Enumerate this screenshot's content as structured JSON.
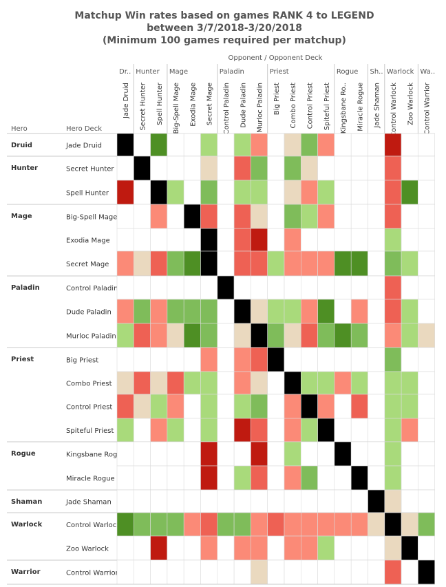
{
  "chart_data": {
    "type": "heatmap",
    "title_lines": [
      "Matchup Win rates based on games RANK 4 to LEGEND",
      "between 3/7/2018-3/20/2018",
      "(Minimum 100 games required per matchup)"
    ],
    "opponent_header": "Opponent  /  Opponent Deck",
    "row_header_hero": "Hero",
    "row_header_deck": "Hero Deck",
    "col_groups": [
      {
        "label": "Dr..",
        "span": 1
      },
      {
        "label": "Hunter",
        "span": 2
      },
      {
        "label": "Mage",
        "span": 3
      },
      {
        "label": "Paladin",
        "span": 3
      },
      {
        "label": "Priest",
        "span": 4
      },
      {
        "label": "Rogue",
        "span": 2
      },
      {
        "label": "Sh..",
        "span": 1
      },
      {
        "label": "Warlock",
        "span": 2
      },
      {
        "label": "Wa..",
        "span": 1
      }
    ],
    "columns": [
      "Jade Druid",
      "Secret Hunter",
      "Spell Hunter",
      "Big-Spell Mage",
      "Exodia Mage",
      "Secret Mage",
      "Control Paladin",
      "Dude Paladin",
      "Murloc Paladin",
      "Big Priest",
      "Combo Priest",
      "Control Priest",
      "Spiteful Priest",
      "Kingsbane Ro..",
      "Miracle Rogue",
      "Jade Shaman",
      "Control Warlock",
      "Zoo Warlock",
      "Control Warrior"
    ],
    "row_groups": [
      {
        "hero": "Druid",
        "rows": [
          {
            "deck": "Jade Druid",
            "cells": [
              "B",
              "",
              "G",
              "",
              "",
              "LG",
              "",
              "LG",
              "S",
              "",
              "T",
              "MG",
              "S",
              "",
              "",
              "",
              "DR",
              "",
              ""
            ]
          }
        ]
      },
      {
        "hero": "Hunter",
        "rows": [
          {
            "deck": "Secret Hunter",
            "cells": [
              "",
              "B",
              "",
              "",
              "",
              "T",
              "",
              "R",
              "MG",
              "",
              "MG",
              "T",
              "",
              "",
              "",
              "",
              "R",
              "",
              ""
            ]
          },
          {
            "deck": "Spell Hunter",
            "cells": [
              "DR",
              "",
              "B",
              "LG",
              "",
              "MG",
              "",
              "LG",
              "LG",
              "",
              "T",
              "S",
              "LG",
              "",
              "",
              "",
              "R",
              "G",
              ""
            ]
          }
        ]
      },
      {
        "hero": "Mage",
        "rows": [
          {
            "deck": "Big-Spell Mage",
            "cells": [
              "",
              "",
              "S",
              "",
              "B",
              "R",
              "",
              "R",
              "T",
              "",
              "MG",
              "LG",
              "S",
              "",
              "",
              "",
              "R",
              "",
              ""
            ]
          },
          {
            "deck": "Exodia Mage",
            "cells": [
              "",
              "",
              "",
              "",
              "",
              "B",
              "",
              "R",
              "DR",
              "",
              "S",
              "",
              "",
              "",
              "",
              "",
              "LG",
              "",
              ""
            ]
          },
          {
            "deck": "Secret Mage",
            "cells": [
              "S",
              "T",
              "R",
              "MG",
              "G",
              "B",
              "",
              "R",
              "R",
              "LG",
              "S",
              "S",
              "S",
              "G",
              "G",
              "",
              "MG",
              "LG",
              ""
            ]
          }
        ]
      },
      {
        "hero": "Paladin",
        "rows": [
          {
            "deck": "Control Paladin",
            "cells": [
              "",
              "",
              "",
              "",
              "",
              "",
              "B",
              "",
              "",
              "",
              "",
              "",
              "",
              "",
              "",
              "",
              "R",
              "",
              ""
            ]
          },
          {
            "deck": "Dude Paladin",
            "cells": [
              "S",
              "MG",
              "S",
              "MG",
              "MG",
              "MG",
              "",
              "B",
              "T",
              "LG",
              "LG",
              "S",
              "G",
              "",
              "S",
              "",
              "R",
              "LG",
              ""
            ]
          },
          {
            "deck": "Murloc Paladin",
            "cells": [
              "LG",
              "R",
              "S",
              "T",
              "G",
              "MG",
              "",
              "T",
              "B",
              "MG",
              "T",
              "R",
              "MG",
              "G",
              "MG",
              "",
              "S",
              "LG",
              "T"
            ]
          }
        ]
      },
      {
        "hero": "Priest",
        "rows": [
          {
            "deck": "Big Priest",
            "cells": [
              "",
              "",
              "",
              "",
              "",
              "S",
              "",
              "S",
              "R",
              "B",
              "",
              "",
              "",
              "",
              "",
              "",
              "MG",
              "",
              ""
            ]
          },
          {
            "deck": "Combo Priest",
            "cells": [
              "T",
              "R",
              "T",
              "R",
              "LG",
              "LG",
              "",
              "S",
              "T",
              "",
              "B",
              "LG",
              "LG",
              "S",
              "LG",
              "",
              "LG",
              "LG",
              ""
            ]
          },
          {
            "deck": "Control Priest",
            "cells": [
              "R",
              "T",
              "LG",
              "S",
              "",
              "LG",
              "",
              "LG",
              "MG",
              "",
              "S",
              "B",
              "S",
              "",
              "R",
              "",
              "LG",
              "LG",
              ""
            ]
          },
          {
            "deck": "Spiteful Priest",
            "cells": [
              "LG",
              "",
              "S",
              "LG",
              "",
              "LG",
              "",
              "DR",
              "R",
              "",
              "S",
              "LG",
              "B",
              "",
              "",
              "",
              "LG",
              "S",
              ""
            ]
          }
        ]
      },
      {
        "hero": "Rogue",
        "rows": [
          {
            "deck": "Kingsbane Rogue",
            "cells": [
              "",
              "",
              "",
              "",
              "",
              "DR",
              "",
              "",
              "DR",
              "",
              "LG",
              "",
              "",
              "B",
              "",
              "",
              "LG",
              "",
              ""
            ]
          },
          {
            "deck": "Miracle Rogue",
            "cells": [
              "",
              "",
              "",
              "",
              "",
              "DR",
              "",
              "LG",
              "R",
              "",
              "S",
              "MG",
              "",
              "",
              "B",
              "",
              "LG",
              "",
              ""
            ]
          }
        ]
      },
      {
        "hero": "Shaman",
        "rows": [
          {
            "deck": "Jade Shaman",
            "cells": [
              "",
              "",
              "",
              "",
              "",
              "",
              "",
              "",
              "",
              "",
              "",
              "",
              "",
              "",
              "",
              "B",
              "T",
              "",
              ""
            ]
          }
        ]
      },
      {
        "hero": "Warlock",
        "rows": [
          {
            "deck": "Control Warlock",
            "cells": [
              "G",
              "MG",
              "MG",
              "MG",
              "S",
              "R",
              "MG",
              "MG",
              "S",
              "R",
              "S",
              "S",
              "S",
              "S",
              "S",
              "T",
              "B",
              "T",
              "MG"
            ]
          },
          {
            "deck": "Zoo Warlock",
            "cells": [
              "",
              "",
              "DR",
              "",
              "",
              "S",
              "",
              "S",
              "S",
              "",
              "S",
              "S",
              "LG",
              "",
              "",
              "",
              "T",
              "B",
              ""
            ]
          }
        ]
      },
      {
        "hero": "Warrior",
        "rows": [
          {
            "deck": "Control Warrior",
            "cells": [
              "",
              "",
              "",
              "",
              "",
              "",
              "",
              "",
              "T",
              "",
              "",
              "",
              "",
              "",
              "",
              "",
              "R",
              "",
              "B"
            ]
          }
        ]
      }
    ]
  },
  "colors": {
    "B": "#000000",
    "G": "#4e8f24",
    "MG": "#7fbc5a",
    "LG": "#a9da7b",
    "T": "#ead9bf",
    "S": "#fb8a77",
    "R": "#ee6154",
    "DR": "#bf1a10",
    "empty": "#ffffff",
    "grid": "#dcdcdc",
    "divider": "#c8c8c8"
  }
}
